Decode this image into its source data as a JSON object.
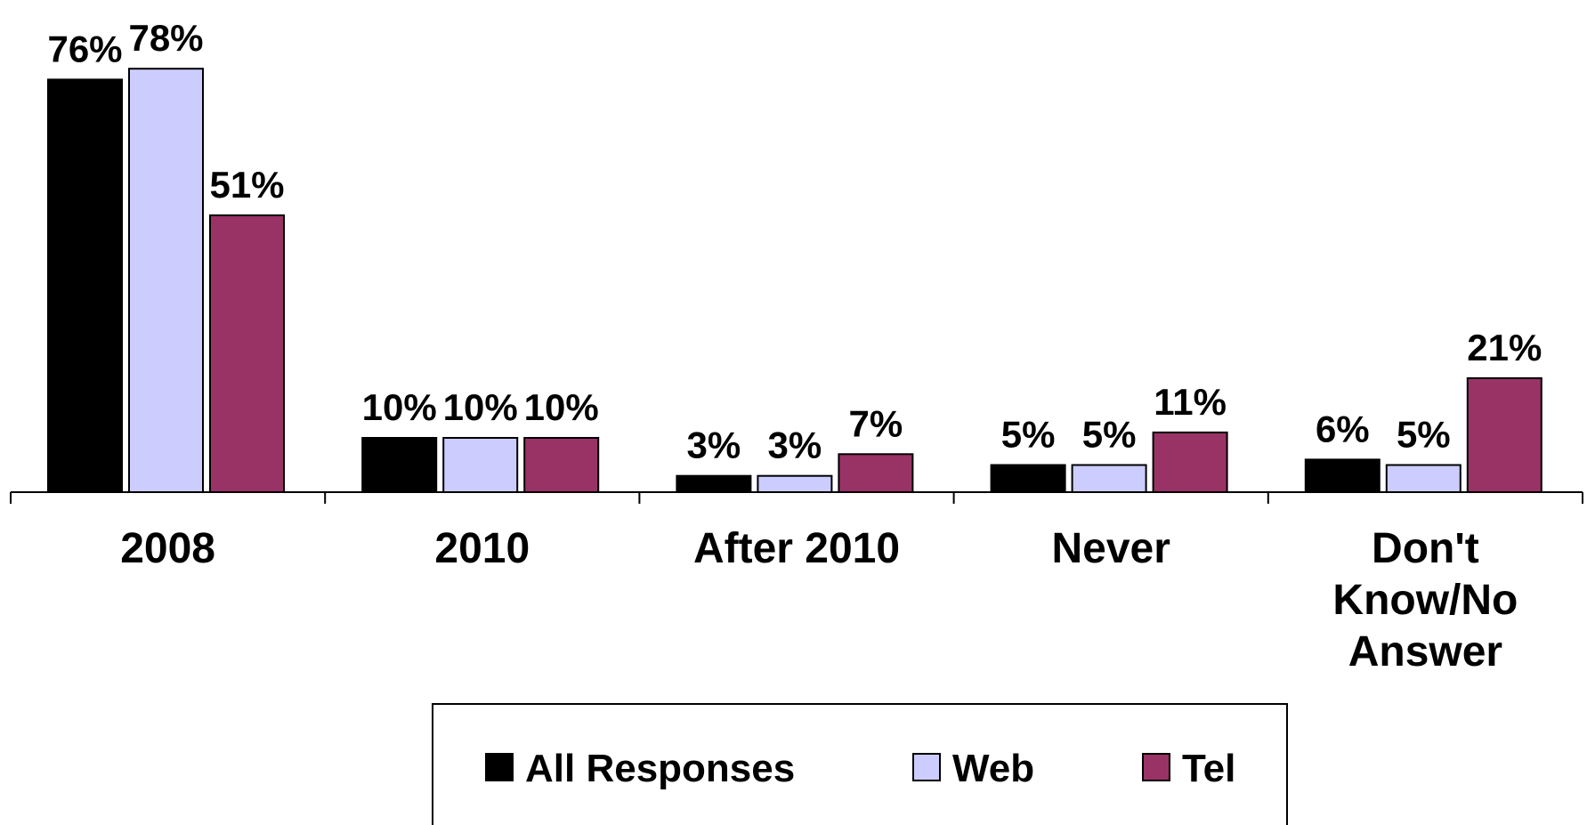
{
  "chart_data": {
    "type": "bar",
    "categories": [
      "2008",
      "2010",
      "After 2010",
      "Never",
      "Don't Know/No Answer"
    ],
    "category_lines": [
      [
        "2008"
      ],
      [
        "2010"
      ],
      [
        "After 2010"
      ],
      [
        "Never"
      ],
      [
        "Don't",
        "Know/No",
        "Answer"
      ]
    ],
    "series": [
      {
        "name": "All Responses",
        "color": "#000000",
        "values": [
          76,
          10,
          3,
          5,
          6
        ]
      },
      {
        "name": "Web",
        "color": "#CCCCFF",
        "values": [
          78,
          10,
          3,
          5,
          5
        ]
      },
      {
        "name": "Tel",
        "color": "#993366",
        "values": [
          51,
          10,
          7,
          11,
          21
        ]
      }
    ],
    "value_suffix": "%",
    "ylim": [
      0,
      80
    ],
    "title": "",
    "xlabel": "",
    "ylabel": "",
    "grid": false,
    "legend_position": "bottom-center"
  }
}
